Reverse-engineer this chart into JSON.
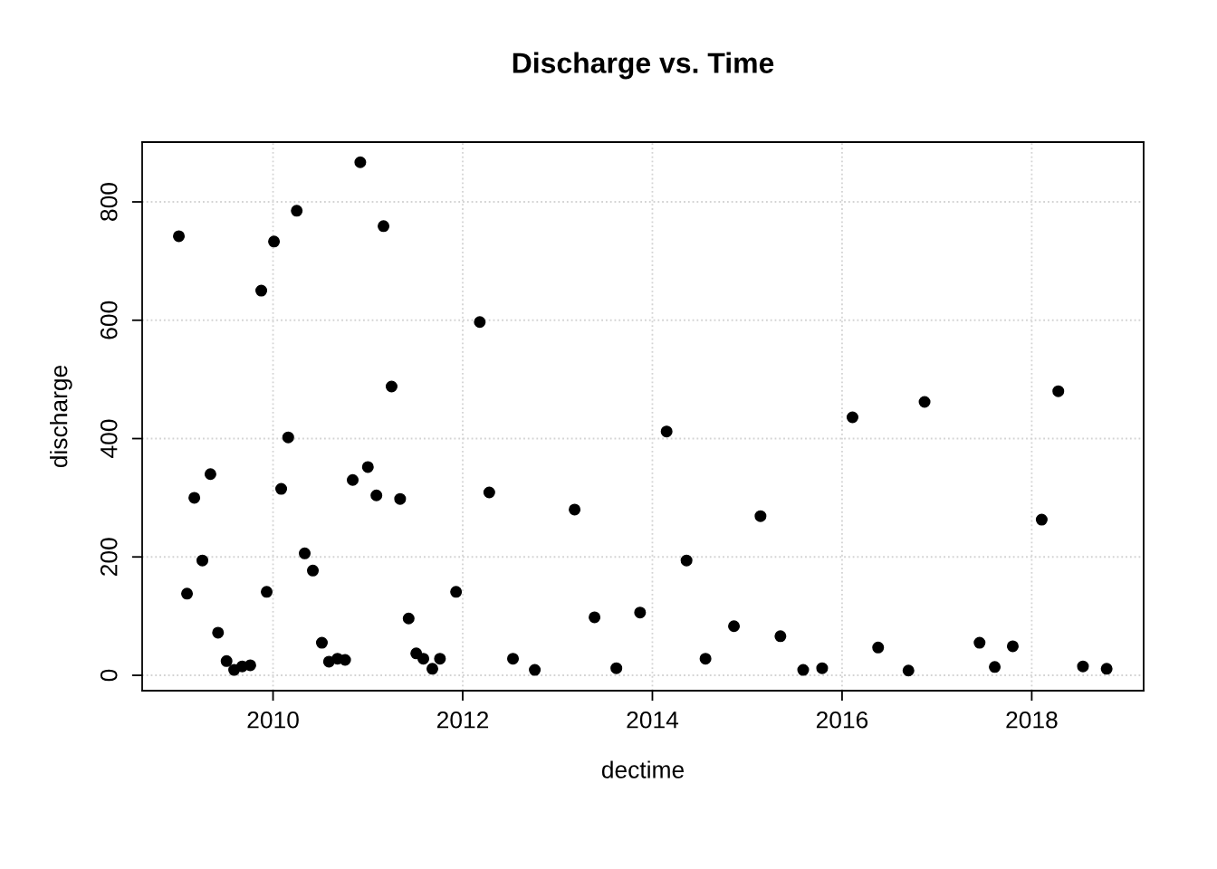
{
  "chart_data": {
    "type": "scatter",
    "title": "Discharge vs. Time",
    "xlabel": "dectime",
    "ylabel": "discharge",
    "x": [
      2009.007,
      2009.093,
      2009.17,
      2009.255,
      2009.34,
      2009.42,
      2009.51,
      2009.59,
      2009.675,
      2009.76,
      2009.876,
      2009.933,
      2010.01,
      2010.086,
      2010.16,
      2010.25,
      2010.334,
      2010.42,
      2010.515,
      2010.59,
      2010.68,
      2010.76,
      2010.84,
      2010.92,
      2011.0,
      2011.09,
      2011.165,
      2011.25,
      2011.34,
      2011.43,
      2011.51,
      2011.585,
      2011.68,
      2011.76,
      2011.93,
      2012.18,
      2012.28,
      2012.53,
      2012.76,
      2013.18,
      2013.39,
      2013.62,
      2013.87,
      2014.15,
      2014.36,
      2014.56,
      2014.86,
      2015.14,
      2015.35,
      2015.59,
      2015.79,
      2016.11,
      2016.38,
      2016.7,
      2016.87,
      2017.45,
      2017.61,
      2017.8,
      2018.105,
      2018.28,
      2018.54,
      2018.79
    ],
    "series": [
      {
        "color": "#000000",
        "values": [
          742,
          138,
          300,
          194,
          340,
          72,
          24,
          9,
          15,
          17,
          650,
          141,
          733,
          315,
          402,
          785,
          206,
          177,
          55,
          23,
          28,
          26,
          330,
          867,
          352,
          304,
          759,
          488,
          298,
          96,
          37,
          28,
          11,
          28,
          141,
          597,
          309,
          28,
          9,
          280,
          98,
          12,
          106,
          412,
          194,
          28,
          83,
          269,
          66,
          9,
          12,
          436,
          47,
          8,
          462,
          55,
          14,
          49,
          263,
          480,
          15,
          11
        ]
      }
    ],
    "xlim": [
      2008.62,
      2019.18
    ],
    "ylim": [
      -26,
      901
    ],
    "xticks": [
      2010,
      2012,
      2014,
      2016,
      2018
    ],
    "yticks": [
      0,
      200,
      400,
      600,
      800
    ],
    "grid": true,
    "marker": "circle"
  }
}
